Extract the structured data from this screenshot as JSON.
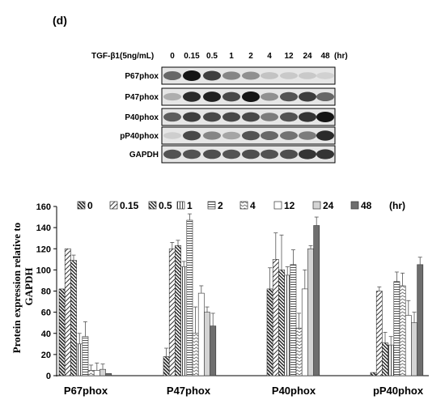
{
  "panel_label": "(d)",
  "blot": {
    "treatment_label": "TGF-β1(5ng/mL)",
    "time_points": [
      "0",
      "0.15",
      "0.5",
      "1",
      "2",
      "4",
      "12",
      "24",
      "48"
    ],
    "time_unit": "(hr)",
    "rows": [
      {
        "label": "P67phox",
        "intensity": [
          0.6,
          1.0,
          0.8,
          0.45,
          0.4,
          0.15,
          0.12,
          0.12,
          0.08
        ]
      },
      {
        "label": "P47phox",
        "intensity": [
          0.25,
          0.9,
          0.95,
          0.75,
          1.0,
          0.4,
          0.7,
          0.8,
          0.6
        ]
      },
      {
        "label": "P40phox",
        "intensity": [
          0.65,
          0.8,
          0.75,
          0.75,
          0.75,
          0.5,
          0.7,
          0.85,
          1.0
        ]
      },
      {
        "label": "pP40phox",
        "intensity": [
          0.1,
          0.75,
          0.45,
          0.3,
          0.7,
          0.6,
          0.55,
          0.5,
          0.9
        ]
      },
      {
        "label": "GAPDH",
        "intensity": [
          0.7,
          0.7,
          0.72,
          0.7,
          0.72,
          0.7,
          0.72,
          0.85,
          0.85
        ]
      }
    ]
  },
  "chart_data": {
    "type": "bar",
    "ylabel": "Protein expression  relative to GAPDH",
    "ylim": [
      0,
      160
    ],
    "yticks": [
      "0",
      "20",
      "40",
      "60",
      "80",
      "100",
      "120",
      "140",
      "160"
    ],
    "categories": [
      "P67phox",
      "P47phox",
      "P40phox",
      "pP40phox"
    ],
    "legend_unit": "(hr)",
    "legend_position": "top",
    "grid": false,
    "series": [
      {
        "name": "0",
        "values": [
          82,
          18,
          82,
          3
        ],
        "errors": [
          0,
          8,
          20,
          0
        ]
      },
      {
        "name": "0.15",
        "values": [
          120,
          120,
          110,
          80
        ],
        "errors": [
          0,
          6,
          25,
          4
        ]
      },
      {
        "name": "0.5",
        "values": [
          109,
          123,
          100,
          31
        ],
        "errors": [
          5,
          5,
          33,
          10
        ]
      },
      {
        "name": "1",
        "values": [
          30,
          103,
          95,
          29
        ],
        "errors": [
          10,
          5,
          8,
          8
        ]
      },
      {
        "name": "2",
        "values": [
          37,
          147,
          105,
          89
        ],
        "errors": [
          14,
          6,
          14,
          9
        ]
      },
      {
        "name": "4",
        "values": [
          5,
          40,
          45,
          85
        ],
        "errors": [
          5,
          25,
          14,
          12
        ]
      },
      {
        "name": "12",
        "values": [
          5,
          78,
          82,
          57
        ],
        "errors": [
          7,
          7,
          18,
          14
        ]
      },
      {
        "name": "24",
        "values": [
          6,
          60,
          120,
          50
        ],
        "errors": [
          5,
          5,
          3,
          10
        ]
      },
      {
        "name": "48",
        "values": [
          2,
          47,
          142,
          105
        ],
        "errors": [
          0,
          12,
          8,
          7
        ]
      }
    ]
  }
}
